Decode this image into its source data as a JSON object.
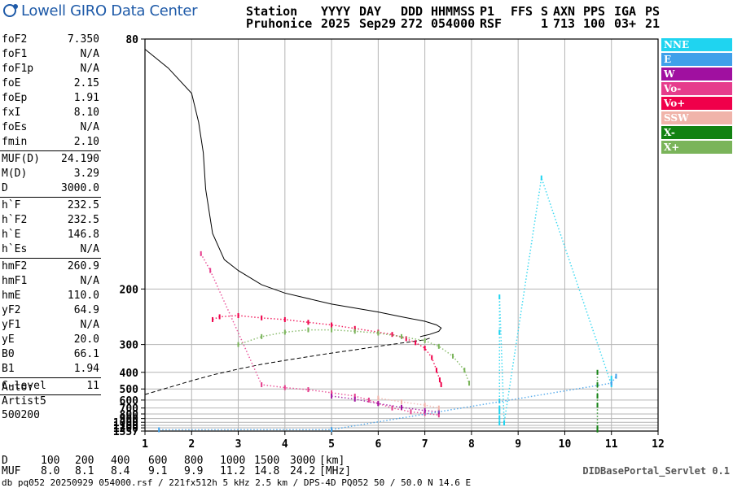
{
  "logo_text": "Lowell GIRO Data Center",
  "header": {
    "row1": [
      "Station",
      "YYYY",
      "DAY",
      "DDD",
      "HHMMSS",
      "P1",
      "FFS",
      "S",
      "AXN",
      "PPS",
      "IGA",
      "PS"
    ],
    "row2": [
      "Pruhonice",
      "2025",
      "Sep29",
      "272",
      "054000",
      "RSF",
      "",
      "1",
      "713",
      "100",
      "03+",
      "21"
    ]
  },
  "param_groups": [
    [
      {
        "label": "foF2",
        "value": "7.350"
      },
      {
        "label": "foF1",
        "value": "N/A"
      },
      {
        "label": "foF1p",
        "value": "N/A"
      },
      {
        "label": "foE",
        "value": "2.15"
      },
      {
        "label": "foEp",
        "value": "1.91"
      },
      {
        "label": "fxI",
        "value": "8.10"
      },
      {
        "label": "foEs",
        "value": "N/A"
      },
      {
        "label": "fmin",
        "value": "2.10"
      }
    ],
    [
      {
        "label": "MUF(D)",
        "value": "24.190"
      },
      {
        "label": "M(D)",
        "value": "3.29"
      },
      {
        "label": "D",
        "value": "3000.0"
      }
    ],
    [
      {
        "label": "h`F",
        "value": "232.5"
      },
      {
        "label": "h`F2",
        "value": "232.5"
      },
      {
        "label": "h`E",
        "value": "146.8"
      },
      {
        "label": "h`Es",
        "value": "N/A"
      }
    ],
    [
      {
        "label": "hmF2",
        "value": "260.9"
      },
      {
        "label": "hmF1",
        "value": "N/A"
      },
      {
        "label": "hmE",
        "value": "110.0"
      },
      {
        "label": "yF2",
        "value": "64.9"
      },
      {
        "label": "yF1",
        "value": "N/A"
      },
      {
        "label": "yE",
        "value": "20.0"
      },
      {
        "label": "B0",
        "value": "66.1"
      },
      {
        "label": "B1",
        "value": "1.94"
      }
    ],
    [
      {
        "label": "C-level",
        "value": "11"
      }
    ]
  ],
  "auto_lines": [
    "Auto:",
    "Artist5",
    "500200"
  ],
  "legend": [
    {
      "label": "NNE",
      "color": "#1fd4f0"
    },
    {
      "label": "E",
      "color": "#3fa0ea"
    },
    {
      "label": "W",
      "color": "#a010a0"
    },
    {
      "label": "Vo-",
      "color": "#e63c8c"
    },
    {
      "label": "Vo+",
      "color": "#f0004a"
    },
    {
      "label": "SSW",
      "color": "#f0b4aa"
    },
    {
      "label": "X-",
      "color": "#128212"
    },
    {
      "label": "X+",
      "color": "#7ab45a"
    }
  ],
  "muf_table": {
    "d_label": "D",
    "d_values": [
      "100",
      "200",
      "400",
      "600",
      "800",
      "1000",
      "1500",
      "3000"
    ],
    "d_unit": "[km]",
    "muf_label": "MUF",
    "muf_values": [
      "8.0",
      "8.1",
      "8.4",
      "9.1",
      "9.9",
      "11.2",
      "14.8",
      "24.2"
    ],
    "muf_unit": "[MHz]"
  },
  "portal": "DIDBasePortal_Servlet 0.1",
  "footer": "db pq052 20250929 054000.rsf / 221fx512h 5 kHz 2.5 km / DPS-4D PQ052 50 / 50.0 N 14.6 E",
  "chart_data": {
    "type": "scatter",
    "title": "",
    "xlabel": "",
    "ylabel": "",
    "xlim": [
      1,
      12
    ],
    "ylim": [
      80,
      1357
    ],
    "x_ticks": [
      1,
      2,
      3,
      4,
      5,
      6,
      7,
      8,
      9,
      10,
      11,
      12
    ],
    "y_ticks": [
      80,
      200,
      300,
      400,
      500,
      600,
      700,
      800,
      900,
      1000,
      1100,
      1200,
      1357
    ],
    "grid": true,
    "scale_note": "reciprocal height axis",
    "series": [
      {
        "name": "Vo+",
        "color": "#f0004a",
        "points": [
          [
            2.45,
            245
          ],
          [
            2.6,
            240
          ],
          [
            3.0,
            238
          ],
          [
            3.5,
            242
          ],
          [
            4.0,
            245
          ],
          [
            4.5,
            250
          ],
          [
            5.0,
            255
          ],
          [
            5.5,
            262
          ],
          [
            6.0,
            270
          ],
          [
            6.3,
            275
          ],
          [
            6.6,
            285
          ],
          [
            6.8,
            295
          ],
          [
            7.0,
            310
          ],
          [
            7.15,
            340
          ],
          [
            7.25,
            390
          ],
          [
            7.32,
            440
          ],
          [
            7.35,
            470
          ]
        ]
      },
      {
        "name": "Vo-",
        "color": "#e63c8c",
        "points": [
          [
            2.2,
            165
          ],
          [
            2.4,
            180
          ],
          [
            3.5,
            470
          ],
          [
            4.0,
            490
          ],
          [
            4.5,
            505
          ],
          [
            5.0,
            530
          ],
          [
            5.5,
            560
          ],
          [
            5.8,
            600
          ],
          [
            6.0,
            640
          ],
          [
            6.3,
            700
          ],
          [
            6.7,
            760
          ],
          [
            7.0,
            790
          ],
          [
            7.3,
            820
          ]
        ]
      },
      {
        "name": "W",
        "color": "#a010a0",
        "points": [
          [
            5.0,
            560
          ],
          [
            5.5,
            590
          ],
          [
            6.0,
            640
          ],
          [
            6.5,
            690
          ],
          [
            7.0,
            740
          ],
          [
            7.3,
            760
          ]
        ]
      },
      {
        "name": "SSW",
        "color": "#f0b4aa",
        "points": [
          [
            6.0,
            580
          ],
          [
            6.5,
            620
          ],
          [
            7.0,
            660
          ],
          [
            7.3,
            700
          ]
        ]
      },
      {
        "name": "X+",
        "color": "#7ab45a",
        "points": [
          [
            3.0,
            300
          ],
          [
            3.5,
            280
          ],
          [
            4.0,
            270
          ],
          [
            4.5,
            265
          ],
          [
            5.0,
            265
          ],
          [
            5.5,
            268
          ],
          [
            6.0,
            272
          ],
          [
            6.5,
            280
          ],
          [
            7.0,
            290
          ],
          [
            7.3,
            305
          ],
          [
            7.6,
            335
          ],
          [
            7.85,
            390
          ],
          [
            7.95,
            460
          ]
        ]
      },
      {
        "name": "X-",
        "color": "#128212",
        "points": [
          [
            10.7,
            1300
          ],
          [
            10.7,
            1200
          ],
          [
            10.7,
            660
          ],
          [
            10.7,
            560
          ],
          [
            10.7,
            470
          ],
          [
            10.7,
            400
          ]
        ]
      },
      {
        "name": "NNE",
        "color": "#1fd4f0",
        "points": [
          [
            8.6,
            1020
          ],
          [
            8.6,
            880
          ],
          [
            8.6,
            760
          ],
          [
            8.6,
            700
          ],
          [
            8.6,
            610
          ],
          [
            8.6,
            270
          ],
          [
            8.6,
            210
          ],
          [
            8.7,
            1020
          ],
          [
            9.5,
            120
          ],
          [
            11.0,
            470
          ],
          [
            11.0,
            430
          ]
        ]
      },
      {
        "name": "E",
        "color": "#3fa0ea",
        "points": [
          [
            1.3,
            1290
          ],
          [
            5.0,
            1280
          ],
          [
            11.0,
            460
          ],
          [
            11.1,
            420
          ]
        ]
      }
    ],
    "profile_lines": [
      {
        "style": "solid",
        "points": [
          [
            1.0,
            82
          ],
          [
            1.5,
            86
          ],
          [
            2.0,
            92
          ],
          [
            2.15,
            100
          ],
          [
            2.25,
            110
          ],
          [
            2.3,
            125
          ],
          [
            2.45,
            150
          ],
          [
            2.7,
            170
          ],
          [
            3.0,
            180
          ],
          [
            3.5,
            195
          ],
          [
            4.0,
            205
          ],
          [
            5.0,
            220
          ],
          [
            6.0,
            232
          ],
          [
            6.5,
            240
          ],
          [
            7.0,
            248
          ],
          [
            7.25,
            255
          ],
          [
            7.35,
            261
          ],
          [
            7.3,
            268
          ],
          [
            7.1,
            275
          ],
          [
            6.9,
            280
          ]
        ]
      },
      {
        "style": "dashed",
        "points": [
          [
            1.0,
            545
          ],
          [
            1.5,
            490
          ],
          [
            2.0,
            445
          ],
          [
            2.5,
            410
          ],
          [
            3.0,
            385
          ],
          [
            3.5,
            365
          ],
          [
            4.0,
            350
          ],
          [
            4.5,
            337
          ],
          [
            5.0,
            325
          ],
          [
            5.5,
            315
          ],
          [
            6.0,
            305
          ],
          [
            6.5,
            296
          ],
          [
            6.8,
            291
          ],
          [
            7.0,
            288
          ],
          [
            7.15,
            282
          ]
        ]
      }
    ]
  }
}
